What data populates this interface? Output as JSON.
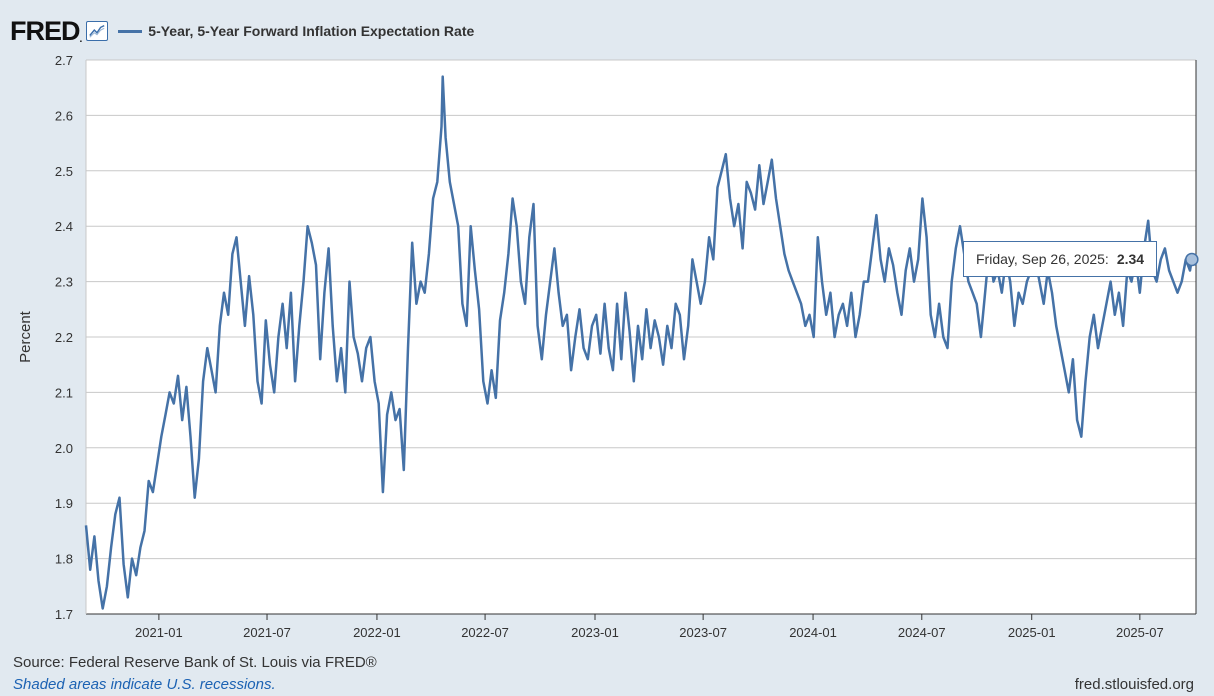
{
  "header": {
    "logo_text": "FRED",
    "logo_dot": ".",
    "series_label": "5-Year, 5-Year Forward Inflation Expectation Rate"
  },
  "footer": {
    "source": "Source: Federal Reserve Bank of St. Louis via FRED®",
    "recession_note": "Shaded areas indicate U.S. recessions.",
    "site": "fred.stlouisfed.org"
  },
  "tooltip": {
    "date_label": "Friday, Sep 26, 2025:",
    "value": "2.34"
  },
  "colors": {
    "line": "#4572a7",
    "background": "#e1e9f0",
    "plot_background": "#ffffff",
    "grid": "#c8c8c8"
  },
  "chart_data": {
    "type": "line",
    "title": "5-Year, 5-Year Forward Inflation Expectation Rate",
    "ylabel": "Percent",
    "xlabel": "",
    "ylim": [
      1.7,
      2.7
    ],
    "xlim": [
      "2020-09-01",
      "2025-10-03"
    ],
    "yticks": [
      1.7,
      1.8,
      1.9,
      2.0,
      2.1,
      2.2,
      2.3,
      2.4,
      2.5,
      2.6,
      2.7
    ],
    "ytick_labels": [
      "1.7",
      "1.8",
      "1.9",
      "2.0",
      "2.1",
      "2.2",
      "2.3",
      "2.4",
      "2.5",
      "2.6",
      "2.7"
    ],
    "xticks": [
      "2021-01-01",
      "2021-07-01",
      "2022-01-01",
      "2022-07-01",
      "2023-01-01",
      "2023-07-01",
      "2024-01-01",
      "2024-07-01",
      "2025-01-01",
      "2025-07-01"
    ],
    "xtick_labels": [
      "2021-01",
      "2021-07",
      "2022-01",
      "2022-07",
      "2023-01",
      "2023-07",
      "2024-01",
      "2024-07",
      "2025-01",
      "2025-07"
    ],
    "grid": true,
    "legend": "top-left",
    "series": [
      {
        "name": "5-Year, 5-Year Forward Inflation Expectation Rate",
        "x": [
          "2020-09-01",
          "2020-09-08",
          "2020-09-15",
          "2020-09-22",
          "2020-09-29",
          "2020-10-06",
          "2020-10-13",
          "2020-10-20",
          "2020-10-27",
          "2020-11-03",
          "2020-11-10",
          "2020-11-17",
          "2020-11-24",
          "2020-12-01",
          "2020-12-08",
          "2020-12-15",
          "2020-12-22",
          "2020-12-29",
          "2021-01-05",
          "2021-01-12",
          "2021-01-19",
          "2021-01-26",
          "2021-02-02",
          "2021-02-09",
          "2021-02-16",
          "2021-02-23",
          "2021-03-02",
          "2021-03-09",
          "2021-03-16",
          "2021-03-23",
          "2021-03-30",
          "2021-04-06",
          "2021-04-13",
          "2021-04-20",
          "2021-04-27",
          "2021-05-04",
          "2021-05-11",
          "2021-05-18",
          "2021-05-25",
          "2021-06-01",
          "2021-06-08",
          "2021-06-15",
          "2021-06-22",
          "2021-06-29",
          "2021-07-06",
          "2021-07-13",
          "2021-07-20",
          "2021-07-27",
          "2021-08-03",
          "2021-08-10",
          "2021-08-17",
          "2021-08-24",
          "2021-08-31",
          "2021-09-07",
          "2021-09-14",
          "2021-09-21",
          "2021-09-28",
          "2021-10-05",
          "2021-10-12",
          "2021-10-19",
          "2021-10-26",
          "2021-11-02",
          "2021-11-09",
          "2021-11-16",
          "2021-11-23",
          "2021-11-30",
          "2021-12-07",
          "2021-12-14",
          "2021-12-21",
          "2021-12-28",
          "2022-01-04",
          "2022-01-11",
          "2022-01-18",
          "2022-01-25",
          "2022-02-01",
          "2022-02-08",
          "2022-02-15",
          "2022-02-22",
          "2022-03-01",
          "2022-03-08",
          "2022-03-15",
          "2022-03-22",
          "2022-03-29",
          "2022-04-05",
          "2022-04-12",
          "2022-04-19",
          "2022-04-21",
          "2022-04-26",
          "2022-05-03",
          "2022-05-10",
          "2022-05-17",
          "2022-05-24",
          "2022-05-31",
          "2022-06-07",
          "2022-06-14",
          "2022-06-21",
          "2022-06-28",
          "2022-07-05",
          "2022-07-12",
          "2022-07-19",
          "2022-07-26",
          "2022-08-02",
          "2022-08-09",
          "2022-08-16",
          "2022-08-23",
          "2022-08-30",
          "2022-09-06",
          "2022-09-13",
          "2022-09-20",
          "2022-09-27",
          "2022-10-04",
          "2022-10-11",
          "2022-10-18",
          "2022-10-25",
          "2022-11-01",
          "2022-11-08",
          "2022-11-15",
          "2022-11-22",
          "2022-11-29",
          "2022-12-06",
          "2022-12-13",
          "2022-12-20",
          "2022-12-27",
          "2023-01-03",
          "2023-01-10",
          "2023-01-17",
          "2023-01-24",
          "2023-01-31",
          "2023-02-07",
          "2023-02-14",
          "2023-02-21",
          "2023-02-28",
          "2023-03-07",
          "2023-03-14",
          "2023-03-21",
          "2023-03-28",
          "2023-04-04",
          "2023-04-11",
          "2023-04-18",
          "2023-04-25",
          "2023-05-02",
          "2023-05-09",
          "2023-05-16",
          "2023-05-23",
          "2023-05-30",
          "2023-06-06",
          "2023-06-13",
          "2023-06-20",
          "2023-06-27",
          "2023-07-04",
          "2023-07-11",
          "2023-07-18",
          "2023-07-25",
          "2023-08-01",
          "2023-08-08",
          "2023-08-15",
          "2023-08-22",
          "2023-08-29",
          "2023-09-05",
          "2023-09-12",
          "2023-09-19",
          "2023-09-26",
          "2023-10-03",
          "2023-10-10",
          "2023-10-17",
          "2023-10-24",
          "2023-10-31",
          "2023-11-07",
          "2023-11-14",
          "2023-11-21",
          "2023-11-28",
          "2023-12-05",
          "2023-12-12",
          "2023-12-19",
          "2023-12-26",
          "2024-01-02",
          "2024-01-09",
          "2024-01-16",
          "2024-01-23",
          "2024-01-30",
          "2024-02-06",
          "2024-02-13",
          "2024-02-20",
          "2024-02-27",
          "2024-03-05",
          "2024-03-12",
          "2024-03-19",
          "2024-03-26",
          "2024-04-02",
          "2024-04-09",
          "2024-04-16",
          "2024-04-23",
          "2024-04-30",
          "2024-05-07",
          "2024-05-14",
          "2024-05-21",
          "2024-05-28",
          "2024-06-04",
          "2024-06-11",
          "2024-06-18",
          "2024-06-25",
          "2024-07-02",
          "2024-07-09",
          "2024-07-16",
          "2024-07-23",
          "2024-07-30",
          "2024-08-06",
          "2024-08-13",
          "2024-08-20",
          "2024-08-27",
          "2024-09-03",
          "2024-09-10",
          "2024-09-17",
          "2024-09-24",
          "2024-10-01",
          "2024-10-08",
          "2024-10-15",
          "2024-10-22",
          "2024-10-29",
          "2024-11-05",
          "2024-11-12",
          "2024-11-19",
          "2024-11-26",
          "2024-12-03",
          "2024-12-10",
          "2024-12-17",
          "2024-12-24",
          "2024-12-31",
          "2025-01-07",
          "2025-01-14",
          "2025-01-21",
          "2025-01-28",
          "2025-02-04",
          "2025-02-11",
          "2025-02-18",
          "2025-02-25",
          "2025-03-04",
          "2025-03-11",
          "2025-03-18",
          "2025-03-25",
          "2025-04-01",
          "2025-04-08",
          "2025-04-15",
          "2025-04-22",
          "2025-04-29",
          "2025-05-06",
          "2025-05-13",
          "2025-05-20",
          "2025-05-27",
          "2025-06-03",
          "2025-06-10",
          "2025-06-17",
          "2025-06-24",
          "2025-07-01",
          "2025-07-08",
          "2025-07-15",
          "2025-07-22",
          "2025-07-29",
          "2025-08-05",
          "2025-08-12",
          "2025-08-19",
          "2025-08-26",
          "2025-09-02",
          "2025-09-09",
          "2025-09-16",
          "2025-09-23",
          "2025-09-26",
          "2025-10-03"
        ],
        "y": [
          1.86,
          1.78,
          1.84,
          1.76,
          1.71,
          1.75,
          1.82,
          1.88,
          1.91,
          1.79,
          1.73,
          1.8,
          1.77,
          1.82,
          1.85,
          1.94,
          1.92,
          1.97,
          2.02,
          2.06,
          2.1,
          2.08,
          2.13,
          2.05,
          2.11,
          2.02,
          1.91,
          1.98,
          2.12,
          2.18,
          2.14,
          2.1,
          2.22,
          2.28,
          2.24,
          2.35,
          2.38,
          2.3,
          2.22,
          2.31,
          2.24,
          2.12,
          2.08,
          2.23,
          2.15,
          2.1,
          2.2,
          2.26,
          2.18,
          2.28,
          2.12,
          2.22,
          2.3,
          2.4,
          2.37,
          2.33,
          2.16,
          2.28,
          2.36,
          2.22,
          2.12,
          2.18,
          2.1,
          2.3,
          2.2,
          2.17,
          2.12,
          2.18,
          2.2,
          2.12,
          2.08,
          1.92,
          2.06,
          2.1,
          2.05,
          2.07,
          1.96,
          2.18,
          2.37,
          2.26,
          2.3,
          2.28,
          2.35,
          2.45,
          2.48,
          2.58,
          2.67,
          2.56,
          2.48,
          2.44,
          2.4,
          2.26,
          2.22,
          2.4,
          2.32,
          2.25,
          2.12,
          2.08,
          2.14,
          2.09,
          2.23,
          2.28,
          2.35,
          2.45,
          2.4,
          2.3,
          2.26,
          2.38,
          2.44,
          2.22,
          2.16,
          2.24,
          2.3,
          2.36,
          2.28,
          2.22,
          2.24,
          2.14,
          2.2,
          2.25,
          2.18,
          2.16,
          2.22,
          2.24,
          2.17,
          2.26,
          2.18,
          2.14,
          2.26,
          2.16,
          2.28,
          2.21,
          2.12,
          2.22,
          2.16,
          2.25,
          2.18,
          2.23,
          2.2,
          2.15,
          2.22,
          2.18,
          2.26,
          2.24,
          2.16,
          2.22,
          2.34,
          2.3,
          2.26,
          2.3,
          2.38,
          2.34,
          2.47,
          2.5,
          2.53,
          2.45,
          2.4,
          2.44,
          2.36,
          2.48,
          2.46,
          2.43,
          2.51,
          2.44,
          2.48,
          2.52,
          2.45,
          2.4,
          2.35,
          2.32,
          2.3,
          2.28,
          2.26,
          2.22,
          2.24,
          2.2,
          2.38,
          2.3,
          2.24,
          2.28,
          2.2,
          2.24,
          2.26,
          2.22,
          2.28,
          2.2,
          2.24,
          2.3,
          2.3,
          2.36,
          2.42,
          2.34,
          2.3,
          2.36,
          2.33,
          2.28,
          2.24,
          2.32,
          2.36,
          2.3,
          2.34,
          2.45,
          2.38,
          2.24,
          2.2,
          2.26,
          2.2,
          2.18,
          2.3,
          2.36,
          2.4,
          2.35,
          2.3,
          2.28,
          2.26,
          2.2,
          2.28,
          2.36,
          2.3,
          2.32,
          2.28,
          2.34,
          2.3,
          2.22,
          2.28,
          2.26,
          2.3,
          2.32,
          2.34,
          2.3,
          2.26,
          2.32,
          2.28,
          2.22,
          2.18,
          2.14,
          2.1,
          2.16,
          2.05,
          2.02,
          2.12,
          2.2,
          2.24,
          2.18,
          2.22,
          2.26,
          2.3,
          2.24,
          2.28,
          2.22,
          2.32,
          2.3,
          2.34,
          2.28,
          2.36,
          2.41,
          2.32,
          2.3,
          2.34,
          2.36,
          2.32,
          2.3,
          2.28,
          2.3,
          2.34,
          2.32,
          2.34,
          2.33
        ]
      }
    ]
  }
}
